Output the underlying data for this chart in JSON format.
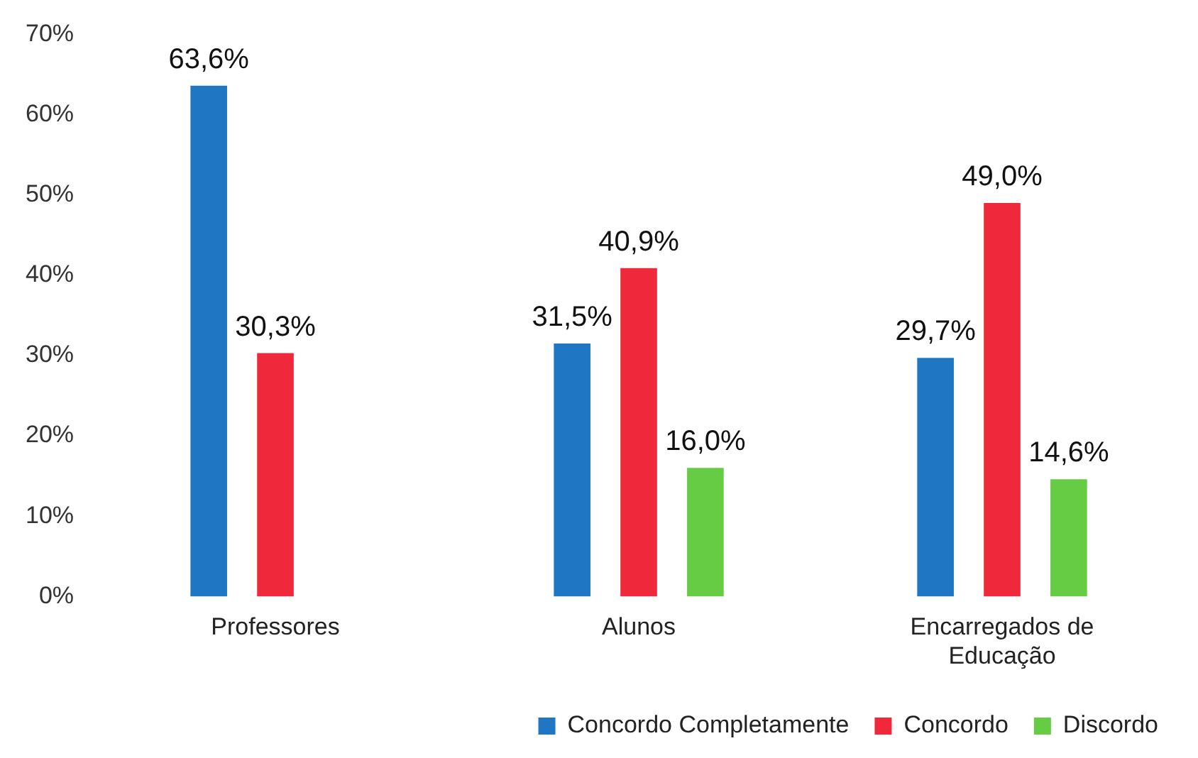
{
  "chart_data": {
    "type": "bar",
    "categories": [
      "Professores",
      "Alunos",
      "Encarregados de Educação"
    ],
    "series": [
      {
        "name": "Concordo Completamente",
        "color": "#1f77c4",
        "values": [
          63.6,
          31.5,
          29.7
        ],
        "value_labels": [
          "63,6%",
          "31,5%",
          "29,7%"
        ]
      },
      {
        "name": "Concordo",
        "color": "#f0283c",
        "values": [
          30.3,
          40.9,
          49.0
        ],
        "value_labels": [
          "30,3%",
          "40,9%",
          "49,0%"
        ]
      },
      {
        "name": "Discordo",
        "color": "#66cc44",
        "values": [
          null,
          16.0,
          14.6
        ],
        "value_labels": [
          null,
          "16,0%",
          "14,6%"
        ]
      }
    ],
    "ylim": [
      0,
      70
    ],
    "yticks": [
      {
        "value": 0,
        "label": "0%"
      },
      {
        "value": 10,
        "label": "10%"
      },
      {
        "value": 20,
        "label": "20%"
      },
      {
        "value": 30,
        "label": "30%"
      },
      {
        "value": 40,
        "label": "40%"
      },
      {
        "value": 50,
        "label": "50%"
      },
      {
        "value": 60,
        "label": "60%"
      },
      {
        "value": 70,
        "label": "70%"
      }
    ],
    "grid": false,
    "legend": "bottom right"
  }
}
